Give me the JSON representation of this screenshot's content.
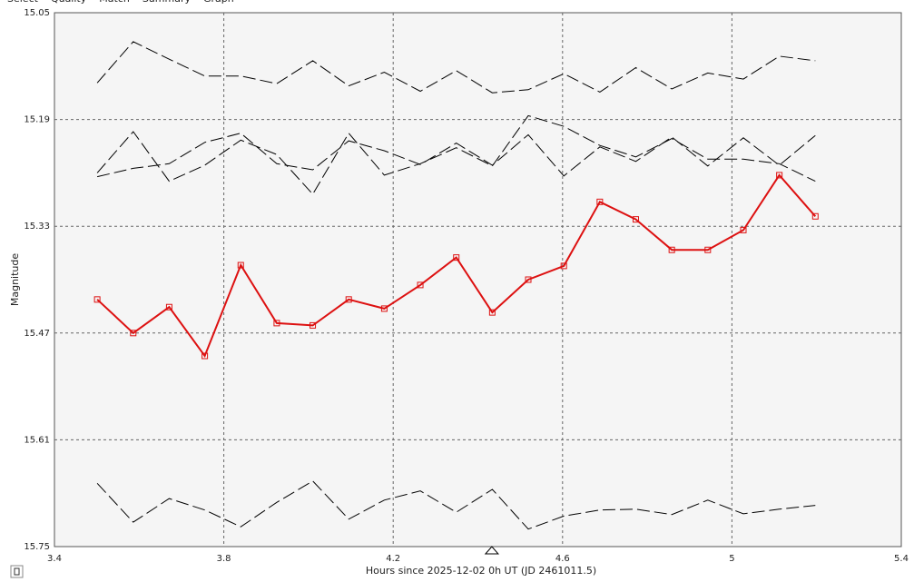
{
  "tabs": [
    "Select",
    "Quality",
    "Match",
    "Summary",
    "Graph"
  ],
  "chart_data": {
    "type": "line",
    "y_inverted": true,
    "grid": true,
    "xlabel": "Hours since 2025-12-02 0h UT (JD 2461011.5)",
    "ylabel": "Magnitude",
    "xlim": [
      3.4,
      5.4
    ],
    "xticks": [
      3.4,
      3.8,
      4.2,
      4.6,
      5,
      5.4
    ],
    "ylim": [
      15.05,
      15.75
    ],
    "yticks": [
      15.05,
      15.19,
      15.33,
      15.47,
      15.61,
      15.75
    ],
    "marker_x": 4.433,
    "x": [
      3.501,
      3.586,
      3.671,
      3.755,
      3.84,
      3.925,
      4.01,
      4.095,
      4.179,
      4.264,
      4.349,
      4.434,
      4.519,
      4.603,
      4.688,
      4.773,
      4.858,
      4.943,
      5.027,
      5.112,
      5.197
    ],
    "series": [
      {
        "color": "#dd1111",
        "style": "solid-markers",
        "values": [
          15.426,
          15.47,
          15.436,
          15.5,
          15.381,
          15.457,
          15.46,
          15.426,
          15.438,
          15.407,
          15.371,
          15.443,
          15.4,
          15.382,
          15.298,
          15.321,
          15.361,
          15.361,
          15.335,
          15.263,
          15.317
        ]
      },
      {
        "color": "#000000",
        "style": "dashed",
        "values": [
          15.142,
          15.088,
          15.111,
          15.133,
          15.133,
          15.143,
          15.113,
          15.146,
          15.128,
          15.153,
          15.126,
          15.155,
          15.151,
          15.13,
          15.154,
          15.122,
          15.15,
          15.129,
          15.137,
          15.107,
          15.113
        ]
      },
      {
        "color": "#000000",
        "style": "dashed",
        "values": [
          15.26,
          15.206,
          15.271,
          15.25,
          15.217,
          15.236,
          15.288,
          15.208,
          15.263,
          15.248,
          15.227,
          15.251,
          15.185,
          15.199,
          15.224,
          15.239,
          15.215,
          15.242,
          15.242,
          15.248,
          15.271
        ]
      },
      {
        "color": "#000000",
        "style": "dashed",
        "values": [
          15.265,
          15.254,
          15.248,
          15.22,
          15.208,
          15.248,
          15.256,
          15.218,
          15.231,
          15.249,
          15.221,
          15.25,
          15.21,
          15.264,
          15.226,
          15.245,
          15.213,
          15.251,
          15.214,
          15.25,
          15.211
        ]
      },
      {
        "color": "#000000",
        "style": "dashed",
        "values": [
          15.667,
          15.718,
          15.687,
          15.702,
          15.724,
          15.692,
          15.664,
          15.714,
          15.689,
          15.677,
          15.705,
          15.675,
          15.727,
          15.71,
          15.702,
          15.701,
          15.708,
          15.689,
          15.707,
          15.701,
          15.696
        ]
      }
    ]
  }
}
